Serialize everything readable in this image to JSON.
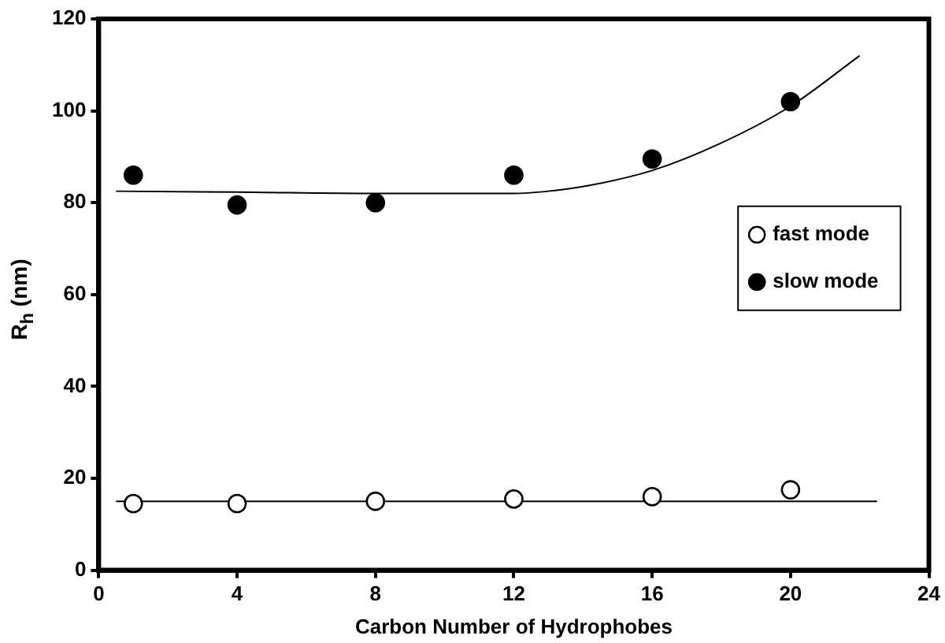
{
  "chart_data": {
    "type": "scatter",
    "xlabel": "Carbon Number of Hydrophobes",
    "ylabel": "R$_{h}$ (nm)",
    "xlim": [
      0,
      24
    ],
    "xticks": [
      0,
      4,
      8,
      12,
      16,
      20,
      24
    ],
    "ylim": [
      0,
      120
    ],
    "yticks": [
      0,
      20,
      40,
      60,
      80,
      100,
      120
    ],
    "grid": false,
    "legend": "right",
    "marker": "circle",
    "series": [
      {
        "name": "fast mode",
        "color": "#ffffff",
        "x": [
          1,
          4,
          8,
          12,
          16,
          20
        ],
        "values": [
          14.5,
          14.5,
          15,
          15.5,
          16,
          17.5
        ]
      },
      {
        "name": "slow mode",
        "color": "#000000",
        "x": [
          1,
          4,
          8,
          12,
          16,
          20
        ],
        "values": [
          86,
          79.5,
          80,
          86,
          89.5,
          102
        ]
      },
      {
        "type": "line",
        "marker": "none",
        "color": "#000000",
        "x": [
          0.5,
          22.5
        ],
        "values": [
          15,
          15
        ]
      },
      {
        "type": "line",
        "marker": "none",
        "color": "#000000",
        "x": [
          0.5,
          4,
          8,
          12,
          13,
          14,
          16,
          18,
          20,
          22
        ],
        "values": [
          82.5,
          82.3,
          82,
          82,
          82.5,
          83.5,
          87,
          93,
          101,
          112
        ]
      }
    ]
  }
}
